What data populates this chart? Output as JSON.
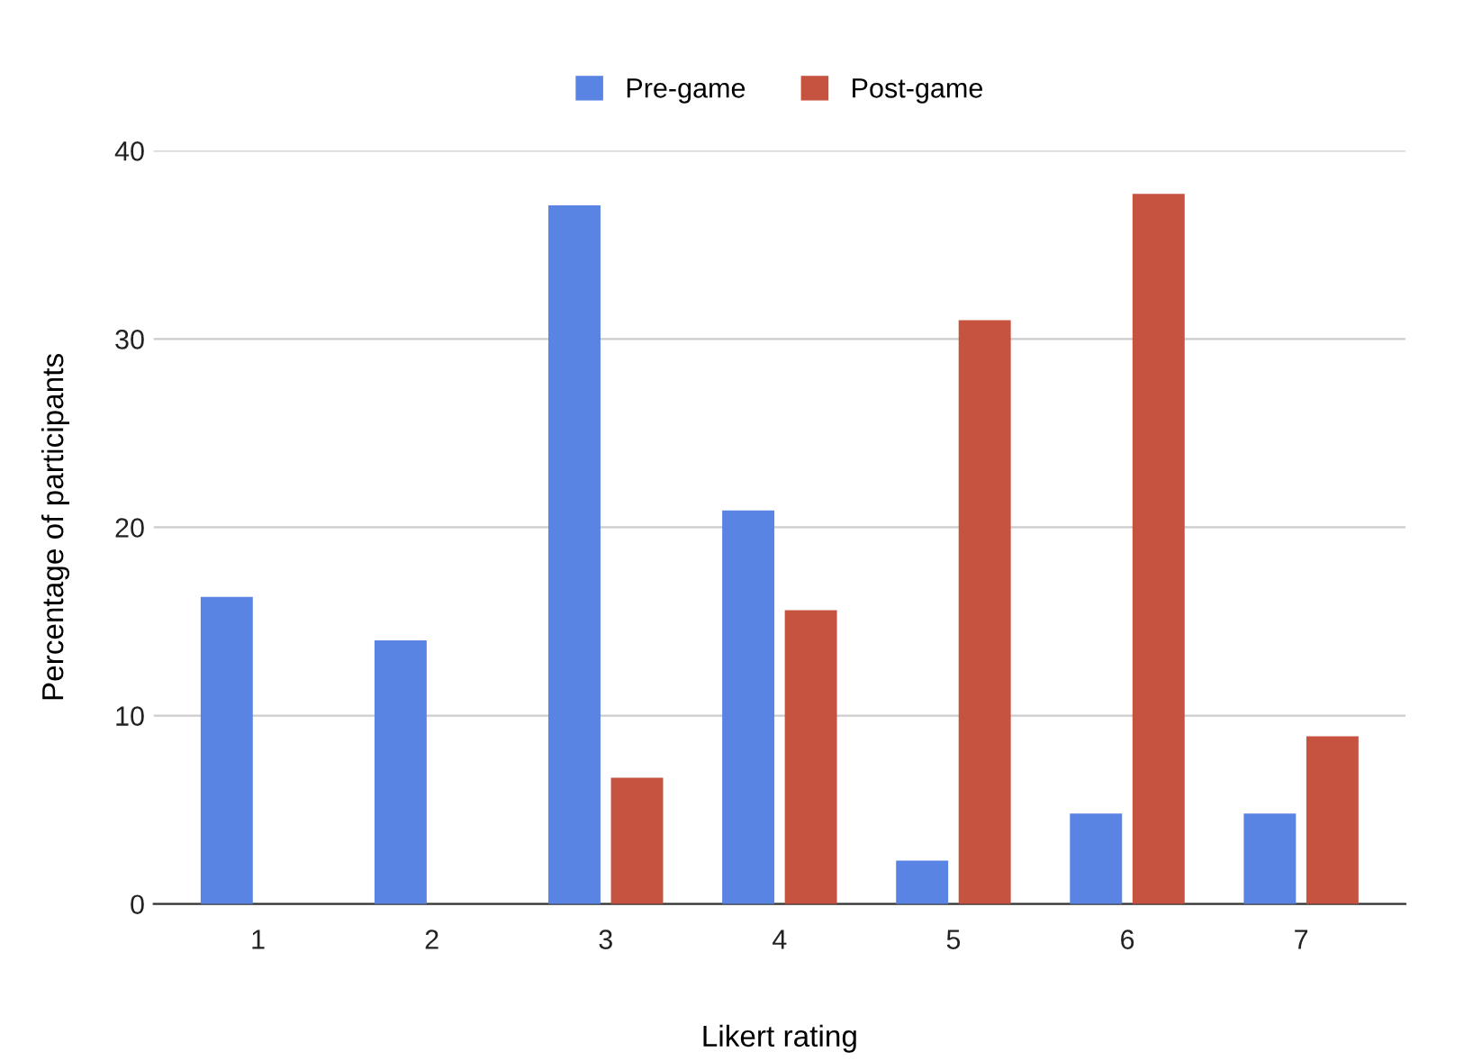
{
  "chart_data": {
    "type": "bar",
    "xlabel": "Likert rating",
    "ylabel": "Percentage of participants",
    "categories": [
      "1",
      "2",
      "3",
      "4",
      "5",
      "6",
      "7"
    ],
    "series": [
      {
        "name": "Pre-game",
        "color": "#5a84e3",
        "values": [
          16.3,
          14.0,
          37.1,
          20.9,
          2.3,
          4.8,
          4.8
        ]
      },
      {
        "name": "Post-game",
        "color": "#c5533f",
        "values": [
          0,
          0,
          6.7,
          15.6,
          31.0,
          37.7,
          8.9
        ]
      }
    ],
    "ylim": [
      0,
      40
    ],
    "yticks": [
      0,
      10,
      20,
      30,
      40
    ],
    "grid": "y",
    "legend": "top"
  }
}
